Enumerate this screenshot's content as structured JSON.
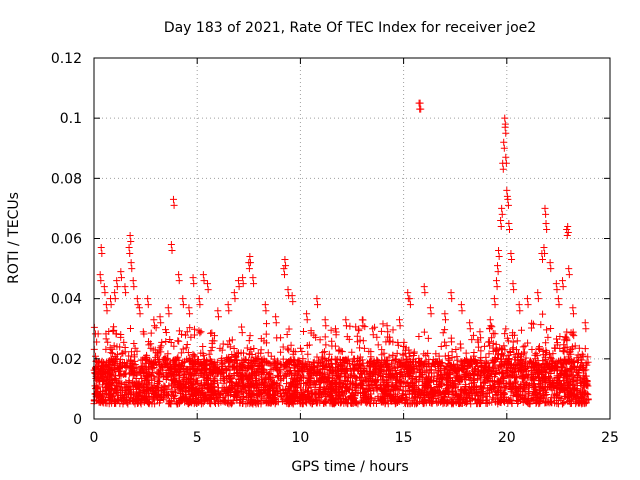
{
  "chart_data": {
    "type": "scatter",
    "title": "Day 183 of 2021, Rate Of TEC Index for receiver joe2",
    "xlabel": "GPS time / hours",
    "ylabel": "ROTI / TECUs",
    "xlim": [
      0,
      25
    ],
    "ylim": [
      0,
      0.12
    ],
    "x_ticks": [
      0,
      5,
      10,
      15,
      20,
      25
    ],
    "y_ticks": [
      0,
      0.02,
      0.04,
      0.06,
      0.08,
      0.1,
      0.12
    ],
    "x_tick_labels": [
      "0",
      "5",
      "10",
      "15",
      "20",
      "25"
    ],
    "y_tick_labels": [
      "0",
      "0.02",
      "0.04",
      "0.06",
      "0.08",
      "0.1",
      "0.12"
    ],
    "grid": true,
    "marker": "+",
    "color": "#ff0000",
    "series": [
      {
        "name": "ROTI",
        "dense_band": {
          "x_range": [
            0,
            23.95
          ],
          "y_range": [
            0.005,
            0.02
          ]
        },
        "points": [
          [
            0.3,
            0.048
          ],
          [
            0.35,
            0.057
          ],
          [
            0.5,
            0.044
          ],
          [
            0.6,
            0.038
          ],
          [
            0.8,
            0.04
          ],
          [
            1.0,
            0.042
          ],
          [
            1.1,
            0.046
          ],
          [
            1.3,
            0.049
          ],
          [
            1.5,
            0.044
          ],
          [
            1.7,
            0.057
          ],
          [
            1.75,
            0.061
          ],
          [
            1.8,
            0.052
          ],
          [
            1.9,
            0.046
          ],
          [
            2.1,
            0.04
          ],
          [
            2.2,
            0.037
          ],
          [
            2.6,
            0.04
          ],
          [
            2.9,
            0.033
          ],
          [
            3.2,
            0.034
          ],
          [
            3.6,
            0.037
          ],
          [
            3.75,
            0.058
          ],
          [
            3.85,
            0.073
          ],
          [
            4.1,
            0.048
          ],
          [
            4.3,
            0.04
          ],
          [
            4.6,
            0.037
          ],
          [
            4.8,
            0.047
          ],
          [
            5.1,
            0.04
          ],
          [
            5.3,
            0.048
          ],
          [
            5.5,
            0.045
          ],
          [
            6.0,
            0.036
          ],
          [
            6.5,
            0.038
          ],
          [
            6.8,
            0.042
          ],
          [
            7.0,
            0.046
          ],
          [
            7.2,
            0.047
          ],
          [
            7.5,
            0.052
          ],
          [
            7.55,
            0.054
          ],
          [
            7.7,
            0.047
          ],
          [
            8.3,
            0.038
          ],
          [
            8.8,
            0.034
          ],
          [
            9.2,
            0.05
          ],
          [
            9.25,
            0.053
          ],
          [
            9.4,
            0.043
          ],
          [
            9.6,
            0.041
          ],
          [
            10.3,
            0.035
          ],
          [
            10.8,
            0.04
          ],
          [
            11.2,
            0.033
          ],
          [
            11.7,
            0.03
          ],
          [
            12.2,
            0.033
          ],
          [
            13.0,
            0.033
          ],
          [
            13.5,
            0.03
          ],
          [
            14.2,
            0.031
          ],
          [
            14.8,
            0.033
          ],
          [
            15.2,
            0.042
          ],
          [
            15.3,
            0.04
          ],
          [
            15.75,
            0.105
          ],
          [
            15.8,
            0.105
          ],
          [
            16.0,
            0.044
          ],
          [
            16.3,
            0.037
          ],
          [
            17.0,
            0.035
          ],
          [
            17.3,
            0.042
          ],
          [
            17.8,
            0.038
          ],
          [
            18.2,
            0.032
          ],
          [
            18.7,
            0.029
          ],
          [
            19.2,
            0.033
          ],
          [
            19.4,
            0.04
          ],
          [
            19.5,
            0.046
          ],
          [
            19.55,
            0.051
          ],
          [
            19.6,
            0.056
          ],
          [
            19.7,
            0.066
          ],
          [
            19.75,
            0.07
          ],
          [
            19.8,
            0.085
          ],
          [
            19.85,
            0.092
          ],
          [
            19.9,
            0.1
          ],
          [
            19.92,
            0.097
          ],
          [
            19.95,
            0.087
          ],
          [
            20.0,
            0.076
          ],
          [
            20.05,
            0.073
          ],
          [
            20.1,
            0.065
          ],
          [
            20.2,
            0.055
          ],
          [
            20.3,
            0.045
          ],
          [
            20.6,
            0.038
          ],
          [
            21.0,
            0.04
          ],
          [
            21.5,
            0.042
          ],
          [
            21.7,
            0.055
          ],
          [
            21.8,
            0.057
          ],
          [
            21.85,
            0.07
          ],
          [
            21.9,
            0.065
          ],
          [
            22.1,
            0.052
          ],
          [
            22.4,
            0.045
          ],
          [
            22.5,
            0.04
          ],
          [
            22.7,
            0.046
          ],
          [
            22.9,
            0.063
          ],
          [
            22.95,
            0.064
          ],
          [
            23.0,
            0.05
          ],
          [
            23.2,
            0.037
          ],
          [
            23.8,
            0.032
          ]
        ]
      }
    ]
  }
}
